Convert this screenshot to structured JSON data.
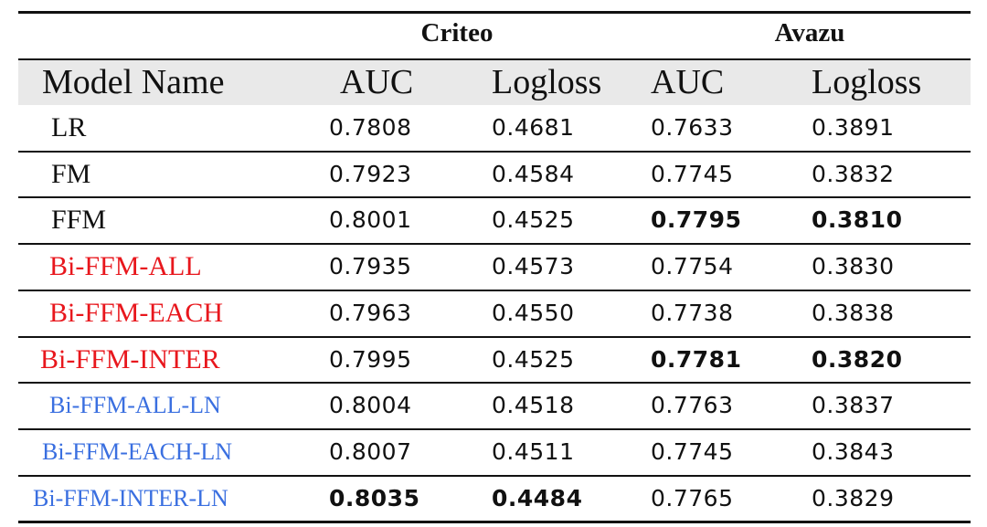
{
  "table": {
    "group_headers": {
      "criteo": "Criteo",
      "avazu": "Avazu"
    },
    "column_headers": {
      "model_name": "Model Name",
      "criteo_auc": "AUC",
      "criteo_logloss": "Logloss",
      "avazu_auc": "AUC",
      "avazu_logloss": "Logloss"
    },
    "rows": [
      {
        "name": "LR",
        "name_color": "#111111",
        "criteo_auc": "0.7808",
        "criteo_logloss": "0.4681",
        "avazu_auc": "0.7633",
        "avazu_logloss": "0.3891",
        "bold": []
      },
      {
        "name": "FM",
        "name_color": "#111111",
        "criteo_auc": "0.7923",
        "criteo_logloss": "0.4584",
        "avazu_auc": "0.7745",
        "avazu_logloss": "0.3832",
        "bold": []
      },
      {
        "name": "FFM",
        "name_color": "#111111",
        "criteo_auc": "0.8001",
        "criteo_logloss": "0.4525",
        "avazu_auc": "0.7795",
        "avazu_logloss": "0.3810",
        "bold": [
          "avazu_auc",
          "avazu_logloss"
        ]
      },
      {
        "name": "Bi-FFM-ALL",
        "name_color": "#e8171d",
        "criteo_auc": "0.7935",
        "criteo_logloss": "0.4573",
        "avazu_auc": "0.7754",
        "avazu_logloss": "0.3830",
        "bold": []
      },
      {
        "name": "Bi-FFM-EACH",
        "name_color": "#e8171d",
        "criteo_auc": "0.7963",
        "criteo_logloss": "0.4550",
        "avazu_auc": "0.7738",
        "avazu_logloss": "0.3838",
        "bold": []
      },
      {
        "name": "Bi-FFM-INTER",
        "name_color": "#e8171d",
        "criteo_auc": "0.7995",
        "criteo_logloss": "0.4525",
        "avazu_auc": "0.7781",
        "avazu_logloss": "0.3820",
        "bold": [
          "avazu_auc",
          "avazu_logloss"
        ]
      },
      {
        "name": "Bi-FFM-ALL-LN",
        "name_color": "#3a6fe0",
        "criteo_auc": "0.8004",
        "criteo_logloss": "0.4518",
        "avazu_auc": "0.7763",
        "avazu_logloss": "0.3837",
        "bold": []
      },
      {
        "name": "Bi-FFM-EACH-LN",
        "name_color": "#3a6fe0",
        "criteo_auc": "0.8007",
        "criteo_logloss": "0.4511",
        "avazu_auc": "0.7745",
        "avazu_logloss": "0.3843",
        "bold": []
      },
      {
        "name": "Bi-FFM-INTER-LN",
        "name_color": "#3a6fe0",
        "criteo_auc": "0.8035",
        "criteo_logloss": "0.4484",
        "avazu_auc": "0.7765",
        "avazu_logloss": "0.3829",
        "bold": [
          "criteo_auc",
          "criteo_logloss"
        ]
      }
    ]
  }
}
